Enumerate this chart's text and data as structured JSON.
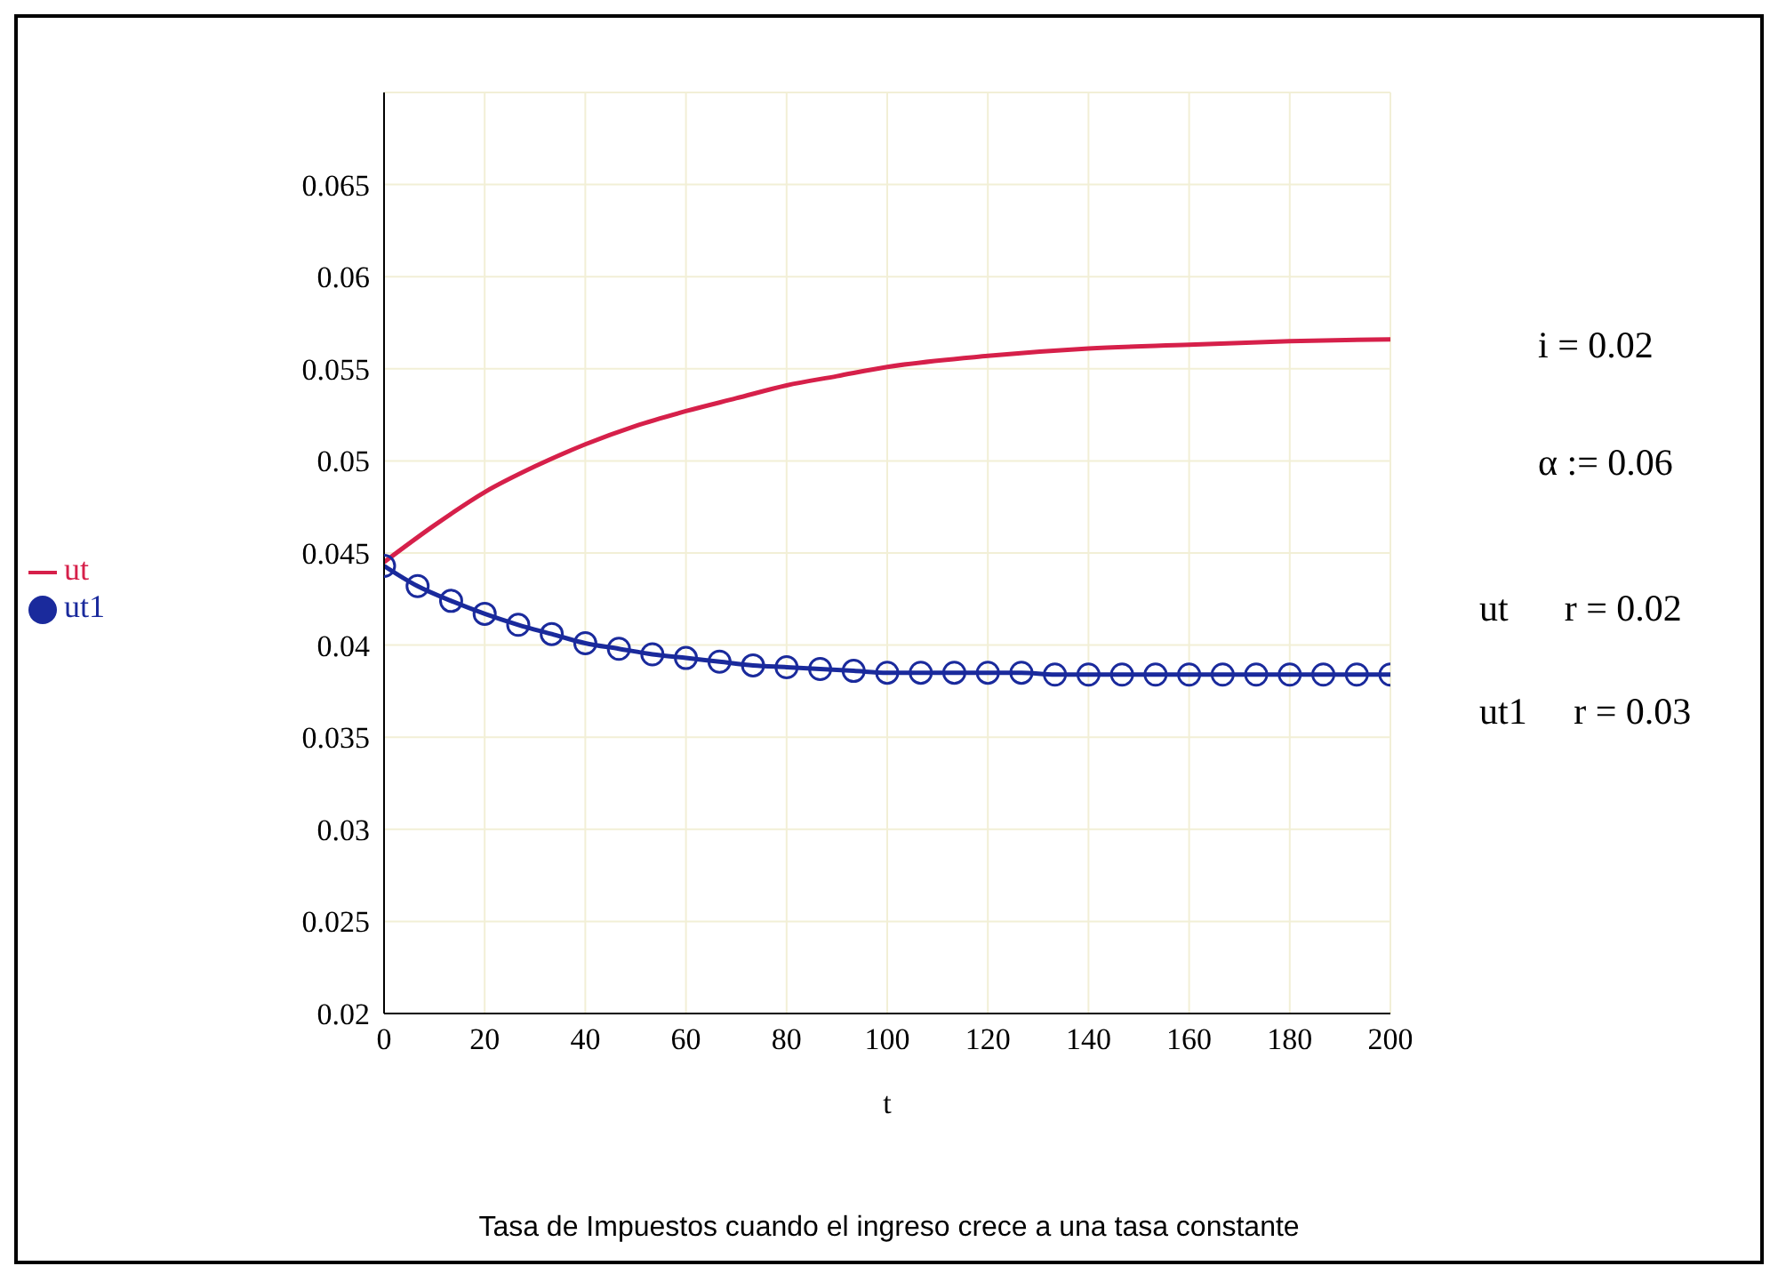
{
  "chart_data": {
    "type": "line",
    "title": "Tasa de Impuestos cuando el ingreso crece a una tasa constante",
    "xlabel": "t",
    "xlim": [
      0,
      200
    ],
    "xticks": [
      0,
      20,
      40,
      60,
      80,
      100,
      120,
      140,
      160,
      180,
      200
    ],
    "ylim": [
      0.02,
      0.07
    ],
    "yticks": [
      0.02,
      0.025,
      0.03,
      0.035,
      0.04,
      0.045,
      0.05,
      0.055,
      0.06,
      0.065
    ],
    "grid": true,
    "legend": "left",
    "line_style": "solid",
    "annotations": [
      "i = 0.02",
      "α := 0.06",
      "ut      r = 0.02",
      "ut1     r = 0.03"
    ],
    "series": [
      {
        "name": "ut",
        "color": "#d6204a",
        "marker": "none",
        "x": [
          0,
          10,
          20,
          30,
          40,
          50,
          60,
          70,
          80,
          90,
          100,
          120,
          140,
          160,
          180,
          200
        ],
        "values": [
          0.0445,
          0.0465,
          0.0483,
          0.0497,
          0.0509,
          0.0519,
          0.0527,
          0.0534,
          0.0541,
          0.0546,
          0.0551,
          0.0557,
          0.0561,
          0.0563,
          0.0565,
          0.0566
        ]
      },
      {
        "name": "ut1",
        "color": "#1a2a9c",
        "marker": "circle",
        "x": [
          0,
          6.67,
          13.33,
          20,
          26.67,
          33.33,
          40,
          46.67,
          53.33,
          60,
          66.67,
          73.33,
          80,
          86.67,
          93.33,
          100,
          106.67,
          113.33,
          120,
          126.67,
          133.33,
          140,
          146.67,
          153.33,
          160,
          166.67,
          173.33,
          180,
          186.67,
          193.33,
          200
        ],
        "values": [
          0.0443,
          0.0432,
          0.0424,
          0.0417,
          0.0411,
          0.0406,
          0.0401,
          0.0398,
          0.0395,
          0.0393,
          0.0391,
          0.0389,
          0.0388,
          0.0387,
          0.0386,
          0.0385,
          0.0385,
          0.0385,
          0.0385,
          0.0385,
          0.0384,
          0.0384,
          0.0384,
          0.0384,
          0.0384,
          0.0384,
          0.0384,
          0.0384,
          0.0384,
          0.0384,
          0.0384
        ]
      }
    ]
  }
}
